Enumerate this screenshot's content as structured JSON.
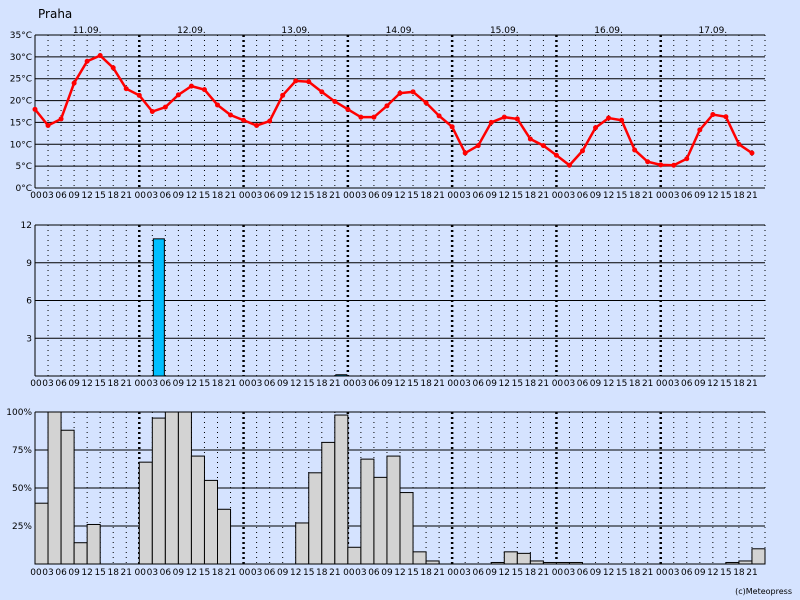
{
  "station": "Praha",
  "copyright": "(c)Meteopress",
  "colors": {
    "background": "#d5e3ff",
    "temperature_line": "#ff0000",
    "precipitation_bar": "#00bfff",
    "cloud_bar": "#d3d3d3"
  },
  "chart_data": [
    {
      "type": "line",
      "title": "",
      "ylabel": "",
      "ylim": [
        0,
        35
      ],
      "y_ticks": [
        "0°C",
        "5°C",
        "10°C",
        "15°C",
        "20°C",
        "25°C",
        "30°C",
        "35°C"
      ],
      "day_labels": [
        "11.09.",
        "12.09.",
        "13.09.",
        "14.09.",
        "15.09.",
        "16.09.",
        "17.09."
      ],
      "hour_labels": [
        "00",
        "03",
        "06",
        "09",
        "12",
        "15",
        "18",
        "21"
      ],
      "series": [
        {
          "values": [
            18,
            14.3,
            15.8,
            24,
            29,
            30.3,
            27.5,
            22.7,
            21.2,
            17.5,
            18.5,
            21.3,
            23.3,
            22.5,
            19,
            16.7,
            15.5,
            14.3,
            15.3,
            21.2,
            24.5,
            24.3,
            22,
            19.8,
            18,
            16.2,
            16.2,
            18.8,
            21.7,
            22,
            19.5,
            16.5,
            14,
            8,
            9.7,
            15,
            16.2,
            15.8,
            11.2,
            9.7,
            7.5,
            5.2,
            8.5,
            13.8,
            16,
            15.5,
            8.7,
            6,
            5.3,
            5.2,
            6.7,
            13.3,
            16.8,
            16.3,
            10,
            8
          ]
        }
      ]
    },
    {
      "type": "bar",
      "title": "",
      "ylabel": "",
      "ylim": [
        0,
        12
      ],
      "y_ticks": [
        "3",
        "6",
        "9",
        "12"
      ],
      "hour_labels": [
        "00",
        "03",
        "06",
        "09",
        "12",
        "15",
        "18",
        "21"
      ],
      "values": [
        0,
        0,
        0,
        0,
        0,
        0,
        0,
        0,
        0,
        10.9,
        0,
        0,
        0,
        0,
        0,
        0,
        0,
        0,
        0,
        0,
        0,
        0,
        0,
        0.1,
        0,
        0,
        0,
        0,
        0,
        0,
        0,
        0,
        0,
        0,
        0,
        0,
        0,
        0,
        0,
        0,
        0,
        0,
        0,
        0,
        0,
        0,
        0,
        0,
        0,
        0,
        0,
        0,
        0,
        0,
        0,
        0
      ]
    },
    {
      "type": "bar",
      "title": "",
      "ylabel": "",
      "ylim": [
        0,
        100
      ],
      "y_ticks": [
        "25%",
        "50%",
        "75%",
        "100%"
      ],
      "hour_labels": [
        "00",
        "03",
        "06",
        "09",
        "12",
        "15",
        "18",
        "21"
      ],
      "values": [
        40,
        100,
        88,
        14,
        26,
        0,
        0,
        0,
        67,
        96,
        100,
        100,
        71,
        55,
        36,
        0,
        0,
        0,
        0,
        0,
        27,
        60,
        80,
        98,
        11,
        69,
        57,
        71,
        47,
        8,
        2,
        0,
        0,
        0,
        0,
        1,
        8,
        7,
        2,
        1,
        1,
        1,
        0,
        0,
        0,
        0,
        0,
        0,
        0,
        0,
        0,
        0,
        0,
        1,
        2,
        10
      ]
    }
  ]
}
